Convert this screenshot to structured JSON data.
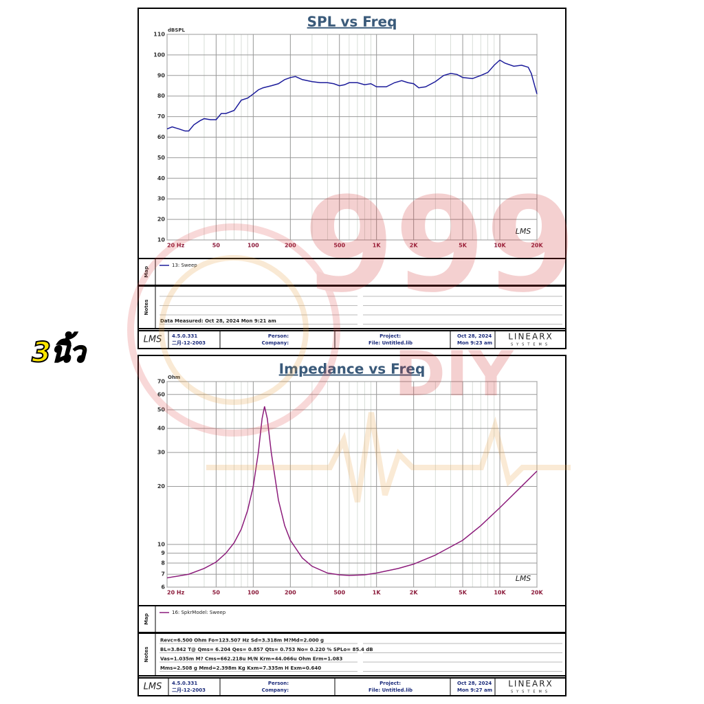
{
  "side_label": "3นิ้ว",
  "watermark": {
    "number": "999",
    "text": "DIY"
  },
  "chart_data": [
    {
      "type": "line",
      "title": "SPL vs Freq",
      "y_label": "dBSPL",
      "x_scale": "log",
      "y_scale": "linear",
      "grid": true,
      "logo": "LMS",
      "xlim": [
        20,
        20000
      ],
      "ylim": [
        10,
        110
      ],
      "xticks": [
        {
          "value": 20,
          "label": "20 Hz"
        },
        50,
        100,
        200,
        500,
        {
          "value": 1000,
          "label": "1K"
        },
        {
          "value": 2000,
          "label": "2K"
        },
        {
          "value": 5000,
          "label": "5K"
        },
        {
          "value": 10000,
          "label": "10K"
        },
        {
          "value": 20000,
          "label": "20K"
        }
      ],
      "yticks": [
        10,
        20,
        30,
        40,
        50,
        60,
        70,
        80,
        90,
        100,
        110
      ],
      "x": [
        20,
        22,
        25,
        28,
        30,
        33,
        37,
        40,
        45,
        50,
        55,
        60,
        70,
        80,
        90,
        100,
        110,
        120,
        140,
        160,
        180,
        200,
        220,
        250,
        300,
        350,
        400,
        450,
        500,
        550,
        600,
        700,
        800,
        900,
        1000,
        1200,
        1400,
        1600,
        1800,
        2000,
        2200,
        2500,
        3000,
        3500,
        4000,
        4500,
        5000,
        6000,
        7000,
        8000,
        9000,
        10000,
        11000,
        13000,
        15000,
        17000,
        18000,
        20000
      ],
      "series": [
        {
          "name": "13: Sweep",
          "color": "#1a1a9a",
          "values": [
            64,
            65,
            64,
            63,
            63,
            66,
            68,
            69,
            68.5,
            68.5,
            71.5,
            71.5,
            73,
            78,
            79,
            81,
            83,
            84,
            85,
            86,
            88,
            89,
            89.5,
            88,
            87,
            86.5,
            86.5,
            86,
            85,
            85.5,
            86.5,
            86.5,
            85.5,
            86,
            84.5,
            84.5,
            86.5,
            87.5,
            86.5,
            86,
            84,
            84.5,
            87,
            90,
            91,
            90.5,
            89,
            88.5,
            90,
            91.5,
            95,
            97.5,
            96,
            94.5,
            95,
            94,
            91,
            81
          ]
        }
      ]
    },
    {
      "type": "line",
      "title": "Impedance vs Freq",
      "y_label": "Ohm",
      "x_scale": "log",
      "y_scale": "log",
      "grid": true,
      "logo": "LMS",
      "xlim": [
        20,
        20000
      ],
      "ylim": [
        6,
        70
      ],
      "xticks": [
        {
          "value": 20,
          "label": "20 Hz"
        },
        50,
        100,
        200,
        500,
        {
          "value": 1000,
          "label": "1K"
        },
        {
          "value": 2000,
          "label": "2K"
        },
        {
          "value": 5000,
          "label": "5K"
        },
        {
          "value": 10000,
          "label": "10K"
        },
        {
          "value": 20000,
          "label": "20K"
        }
      ],
      "yticks": [
        6,
        7,
        8,
        9,
        10,
        20,
        30,
        40,
        50,
        60,
        70
      ],
      "x": [
        20,
        30,
        40,
        50,
        60,
        70,
        80,
        90,
        100,
        110,
        118,
        123.5,
        130,
        140,
        160,
        180,
        200,
        250,
        300,
        400,
        500,
        600,
        800,
        1000,
        1500,
        2000,
        3000,
        5000,
        7000,
        10000,
        15000,
        20000
      ],
      "series": [
        {
          "name": "16: SpkrModel: Sweep",
          "color": "#8b1a7a",
          "values": [
            6.7,
            7.0,
            7.5,
            8.1,
            9.0,
            10.2,
            12,
            15,
            20,
            30,
            45,
            52,
            45,
            30,
            17,
            12.5,
            10.5,
            8.5,
            7.7,
            7.1,
            6.95,
            6.9,
            6.95,
            7.1,
            7.5,
            7.9,
            8.8,
            10.5,
            12.5,
            15.5,
            20,
            24
          ]
        }
      ]
    }
  ],
  "panels": [
    {
      "map_label": "Map",
      "notes_label": "Notes",
      "notes": [
        "Data Measured: Oct 28, 2024  Mon  9:21 am"
      ],
      "footer": {
        "logo": "LMS",
        "version": "4.5.0.331",
        "date_code": "二月-12-2003",
        "person": "Person:",
        "company": "Company:",
        "project": "Project:",
        "file": "File: Untitled.lib",
        "date": "Oct 28, 2024",
        "time": "Mon  9:23 am",
        "brand": "LINEARX",
        "brand_sub": "SYSTEMS"
      }
    },
    {
      "map_label": "Map",
      "notes_label": "Notes",
      "notes": [
        "Revc=6.500 Ohm  Fo=123.507 Hz  Sd=3.318m M?Md=2.000 g",
        "BL=3.842 T@  Qms= 6.204  Qes= 0.857  Qts= 0.753  No= 0.220 %  SPLo= 85.4 dB",
        "Vas=1.035m M? Cms=662.218u M/N  Krm=44.066u Ohm  Erm=1.083",
        "Mms=2.508 g  Mmd=2.398m Kg  Kxm=7.335m H  Exm=0.640"
      ],
      "footer": {
        "logo": "LMS",
        "version": "4.5.0.331",
        "date_code": "二月-12-2003",
        "person": "Person:",
        "company": "Company:",
        "project": "Project:",
        "file": "File: Untitled.lib",
        "date": "Oct 28, 2024",
        "time": "Mon  9:27 am",
        "brand": "LINEARX",
        "brand_sub": "SYSTEMS"
      }
    }
  ]
}
